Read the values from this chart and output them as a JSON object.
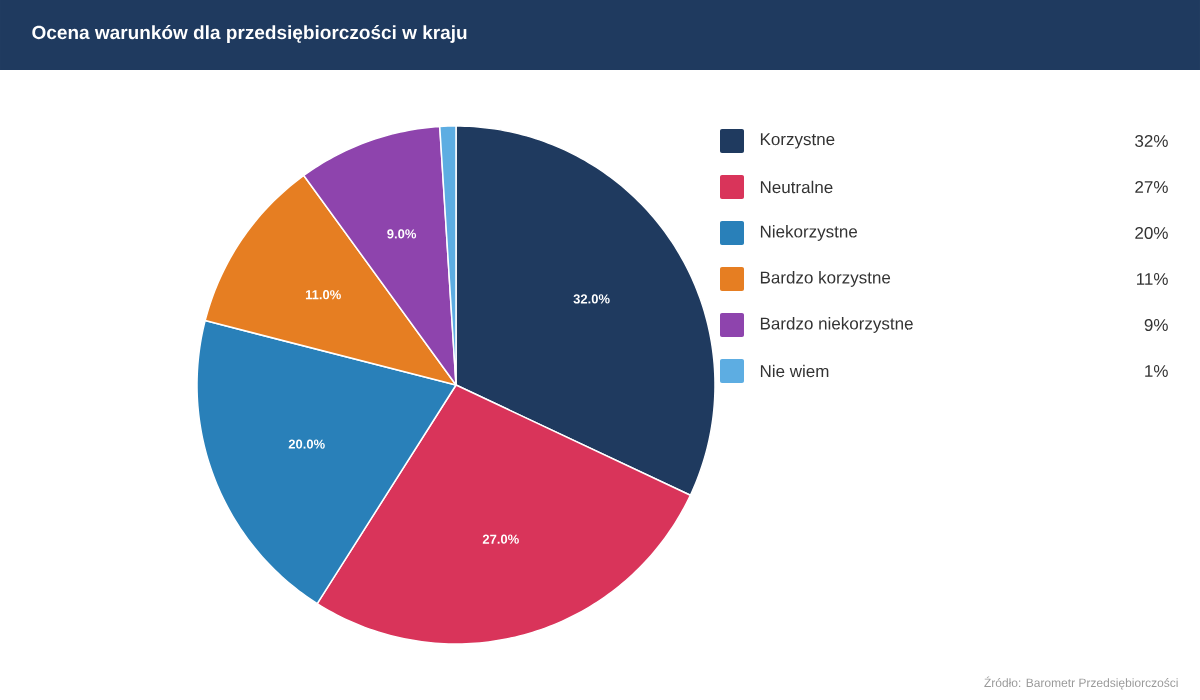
{
  "chart_data": {
    "type": "pie",
    "title": "Ocena warunków dla przedsiębiorczości w kraju",
    "categories": [
      "Korzystne",
      "Neutralne",
      "Niekorzystne",
      "Bardzo korzystne",
      "Bardzo niekorzystne",
      "Nie wiem"
    ],
    "values": [
      32,
      27,
      20,
      11,
      9,
      1
    ],
    "colors": [
      "#1f3a5f",
      "#d9345a",
      "#2980b9",
      "#e67e22",
      "#8e44ad",
      "#5dade2"
    ],
    "value_labels": [
      "32.0%",
      "27.0%",
      "20.0%",
      "11.0%",
      "9.0%",
      null
    ],
    "legend": "right",
    "annotations": [
      "32%",
      "27%",
      "20%",
      "11%",
      "9%",
      "1%",
      "Źródło: Barometr Przedsiębiorczości"
    ]
  }
}
